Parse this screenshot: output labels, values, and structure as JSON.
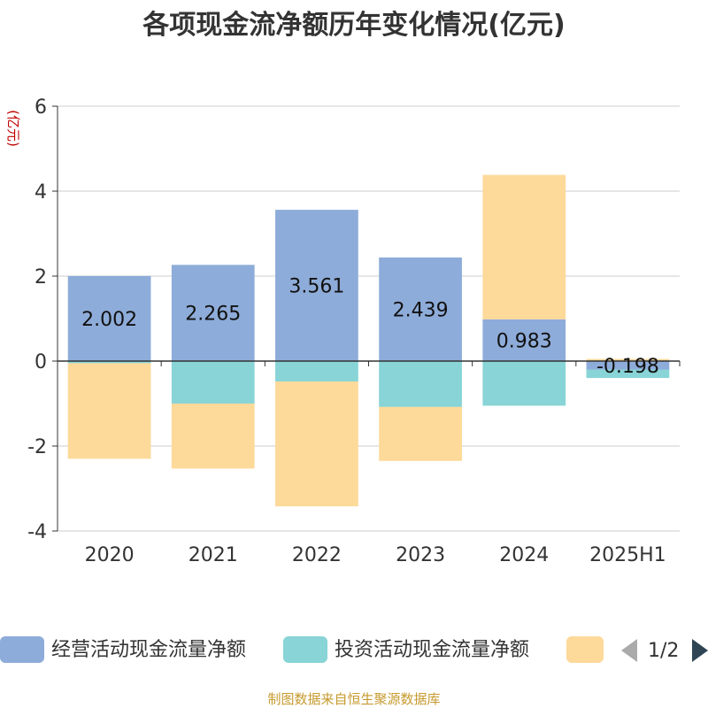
{
  "chart_data": {
    "type": "bar",
    "stacked": true,
    "title": "各项现金流净额历年变化情况(亿元)",
    "ylabel": "(亿元)",
    "ylim": [
      -4,
      6
    ],
    "yticks": [
      "6",
      "4",
      "2",
      "0",
      "-2",
      "-4"
    ],
    "categories": [
      "2020",
      "2021",
      "2022",
      "2023",
      "2024",
      "2025H1"
    ],
    "series": [
      {
        "name": "经营活动现金流量净额",
        "color": "#8eacd9",
        "values": [
          2.002,
          2.265,
          3.561,
          2.439,
          0.983,
          -0.198
        ],
        "labels": [
          "2.002",
          "2.265",
          "3.561",
          "2.439",
          "0.983",
          "-0.198"
        ]
      },
      {
        "name": "投资活动现金流量净额",
        "color": "#88d4d6",
        "values": [
          -0.05,
          -1.0,
          -0.48,
          -1.08,
          -1.05,
          -0.2
        ]
      },
      {
        "name": "",
        "color": "#fdd99a",
        "values": [
          -2.25,
          -1.53,
          -2.94,
          -1.27,
          3.4,
          0.05
        ]
      }
    ],
    "grid": true,
    "legend_position": "bottom",
    "legend_page": "1/2"
  },
  "source": "制图数据来自恒生聚源数据库"
}
